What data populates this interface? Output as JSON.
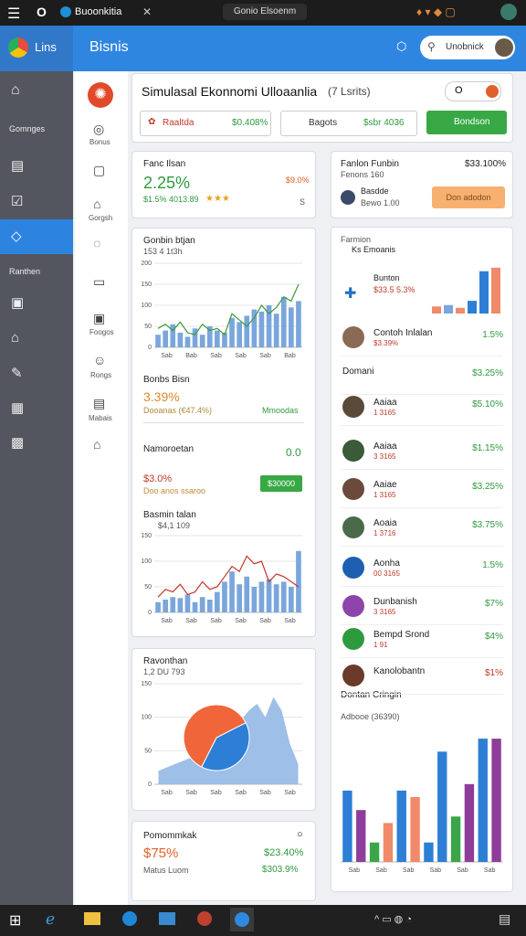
{
  "status_bar": {
    "app": "Buoonkitia",
    "tab": "Gonio Elsoenm"
  },
  "sidebar": {
    "brand": "Lins",
    "items": [
      "Gomnges",
      "Ranthen"
    ]
  },
  "header": {
    "title": "Bisnis",
    "search": "Unobnick"
  },
  "nav": [
    "Bonus",
    "Gorgsh",
    "Foogos",
    "Rongs",
    "Mabais"
  ],
  "simulation": {
    "title": "Simulasal Ekonnomi Ulloaanlia",
    "badge": "(7 Lsrits)",
    "toggle": "O",
    "buttons": [
      {
        "label": "Raaltda",
        "value": "$0.408%"
      },
      {
        "label": "Bagots",
        "value": "$sbr 4036"
      },
      {
        "label": "Bondson"
      }
    ]
  },
  "summary": {
    "label": "Fanc Ilsan",
    "value": "2.25%",
    "detail": "$1.5% 4013.89",
    "stars": "★★★",
    "side_value": "$9.0%",
    "side_note": "S"
  },
  "profile_card": {
    "title": "Fanlon Funbin",
    "value": "$33.100%",
    "subtitle": "Fenons 160",
    "name": "Basdde",
    "note": "Bewo 1.00",
    "button": "Don adodon"
  },
  "chart1": {
    "type": "bar",
    "title": "Gonbin btjan",
    "subtitle": "153 4 1t3h",
    "ylim": [
      0,
      200
    ],
    "yticks": [
      0,
      50,
      100,
      150,
      200
    ],
    "color": "#7aa6dc",
    "line_color": "#3a9a3a",
    "values": [
      30,
      40,
      55,
      35,
      25,
      45,
      30,
      50,
      40,
      35,
      70,
      60,
      75,
      90,
      85,
      100,
      80,
      120,
      95,
      110
    ],
    "line_values": [
      45,
      55,
      40,
      60,
      35,
      30,
      55,
      40,
      45,
      30,
      80,
      65,
      50,
      70,
      100,
      80,
      95,
      120,
      110,
      150
    ],
    "x_labels": [
      "Sab",
      "Bab",
      "Sab",
      "Sab",
      "Sab",
      "Bab"
    ]
  },
  "stats1": {
    "title": "Bonbs Bisn",
    "value": "3.39%",
    "detail": "Dooanas (€47.4%)",
    "side": "Mmoodas"
  },
  "stats2": {
    "title": "Namoroetan",
    "side": "0.0",
    "value": "$3.0%",
    "detail": "Doo anos ssaroo",
    "button": "$30000"
  },
  "chart2": {
    "type": "bar",
    "title": "Basmin talan",
    "subtitle": "$4,1 109",
    "ylim": [
      0,
      150
    ],
    "yticks": [
      0,
      50,
      100,
      150
    ],
    "color": "#7aa6dc",
    "line_color": "#c0392b",
    "values": [
      20,
      25,
      30,
      28,
      35,
      20,
      30,
      25,
      40,
      60,
      80,
      55,
      70,
      50,
      60,
      65,
      55,
      60,
      50,
      120
    ],
    "line_values": [
      30,
      45,
      40,
      55,
      35,
      40,
      60,
      45,
      50,
      70,
      90,
      80,
      110,
      95,
      100,
      60,
      75,
      70,
      60,
      50
    ],
    "x_labels": [
      "Sab",
      "Sab",
      "Sab",
      "Sab",
      "Sab",
      "Sab"
    ]
  },
  "chart3": {
    "type": "area",
    "title": "Ravonthan",
    "subtitle": "1,2 DU 793",
    "ylim": [
      0,
      150
    ],
    "yticks": [
      0,
      50,
      100,
      150
    ],
    "color": "#9dbfe8",
    "values": [
      20,
      25,
      30,
      35,
      40,
      50,
      55,
      60,
      70,
      80,
      95,
      110,
      120,
      100,
      130,
      110,
      60,
      30
    ],
    "pie_values": [
      40,
      60
    ],
    "pie_colors": [
      "#2d7fd6",
      "#f0663a"
    ],
    "x_labels": [
      "Sab",
      "Sab",
      "Sab",
      "Sab",
      "Sab",
      "Sab"
    ]
  },
  "totals": {
    "title": "Pomommkak",
    "value": "$75%",
    "side_value": "$23.40%",
    "note": "Matus Luom",
    "side_note": "$303.9%"
  },
  "ranking": {
    "title": "Farmion",
    "subtitle": "Ks Emoanis",
    "values": [
      10,
      12,
      8,
      18,
      60,
      65
    ],
    "colors": [
      "#f08a6a",
      "#7aa6dc",
      "#f08a6a",
      "#2d7fd6",
      "#2d7fd6",
      "#f08a6a"
    ],
    "lead_name": "Bunton",
    "lead_sub": "$33.5 5.3%",
    "rows": [
      {
        "name": "Contoh Inlalan",
        "sub": "$3.39%",
        "value": "1.5%",
        "color": "#2e9a3e",
        "avatar": "#8a6a55"
      },
      {
        "name": "Domani",
        "value": "$3.25%",
        "color": "#2e9a3e"
      },
      {
        "name": "Aaiaa",
        "sub": "1 3165",
        "value": "$5.10%",
        "color": "#2e9a3e",
        "avatar": "#5a4a3a"
      },
      {
        "name": "Aaiaa",
        "sub": "3 3165",
        "value": "$1.15%",
        "color": "#2e9a3e",
        "avatar": "#3a5a3a"
      },
      {
        "name": "Aaiae",
        "sub": "1 3165",
        "value": "$3.25%",
        "color": "#2e9a3e",
        "avatar": "#6a4a3a"
      },
      {
        "name": "Aoaia",
        "sub": "1 3716",
        "value": "$3.75%",
        "color": "#2e9a3e",
        "avatar": "#4a6a4a"
      },
      {
        "name": "Aonha",
        "sub": "00 3165",
        "value": "1.5%",
        "color": "#2e9a3e",
        "avatar": "#1f5fb0"
      },
      {
        "name": "Dunbanish",
        "sub": "3 3165",
        "value": "$7%",
        "color": "#2e9a3e",
        "avatar": "#8e44ad"
      },
      {
        "name": "Bempd Srond",
        "sub": "1 91",
        "value": "$4%",
        "color": "#2e9a3e",
        "avatar": "#2e9a3e"
      },
      {
        "name": "Kanolobantn",
        "value": "$1%",
        "color": "#c0392b",
        "avatar": "#6a3a2a"
      }
    ]
  },
  "chart4": {
    "type": "bar",
    "title": "Dontan Cringin",
    "subtitle": "Adbooe (36390)",
    "ylim": [
      0,
      100
    ],
    "values": [
      55,
      40,
      15,
      30,
      55,
      50,
      15,
      85,
      35,
      60,
      95,
      95
    ],
    "colors": [
      "#2d7fd6",
      "#8e3d9a",
      "#3aa64a",
      "#f08a6a",
      "#2d7fd6",
      "#f08a6a",
      "#2d7fd6",
      "#2d7fd6",
      "#3aa64a",
      "#8e3d9a",
      "#2d7fd6",
      "#8e3d9a"
    ],
    "x_labels": [
      "Sab",
      "Sab",
      "Sab",
      "Sab",
      "Sab",
      "Sab"
    ]
  }
}
